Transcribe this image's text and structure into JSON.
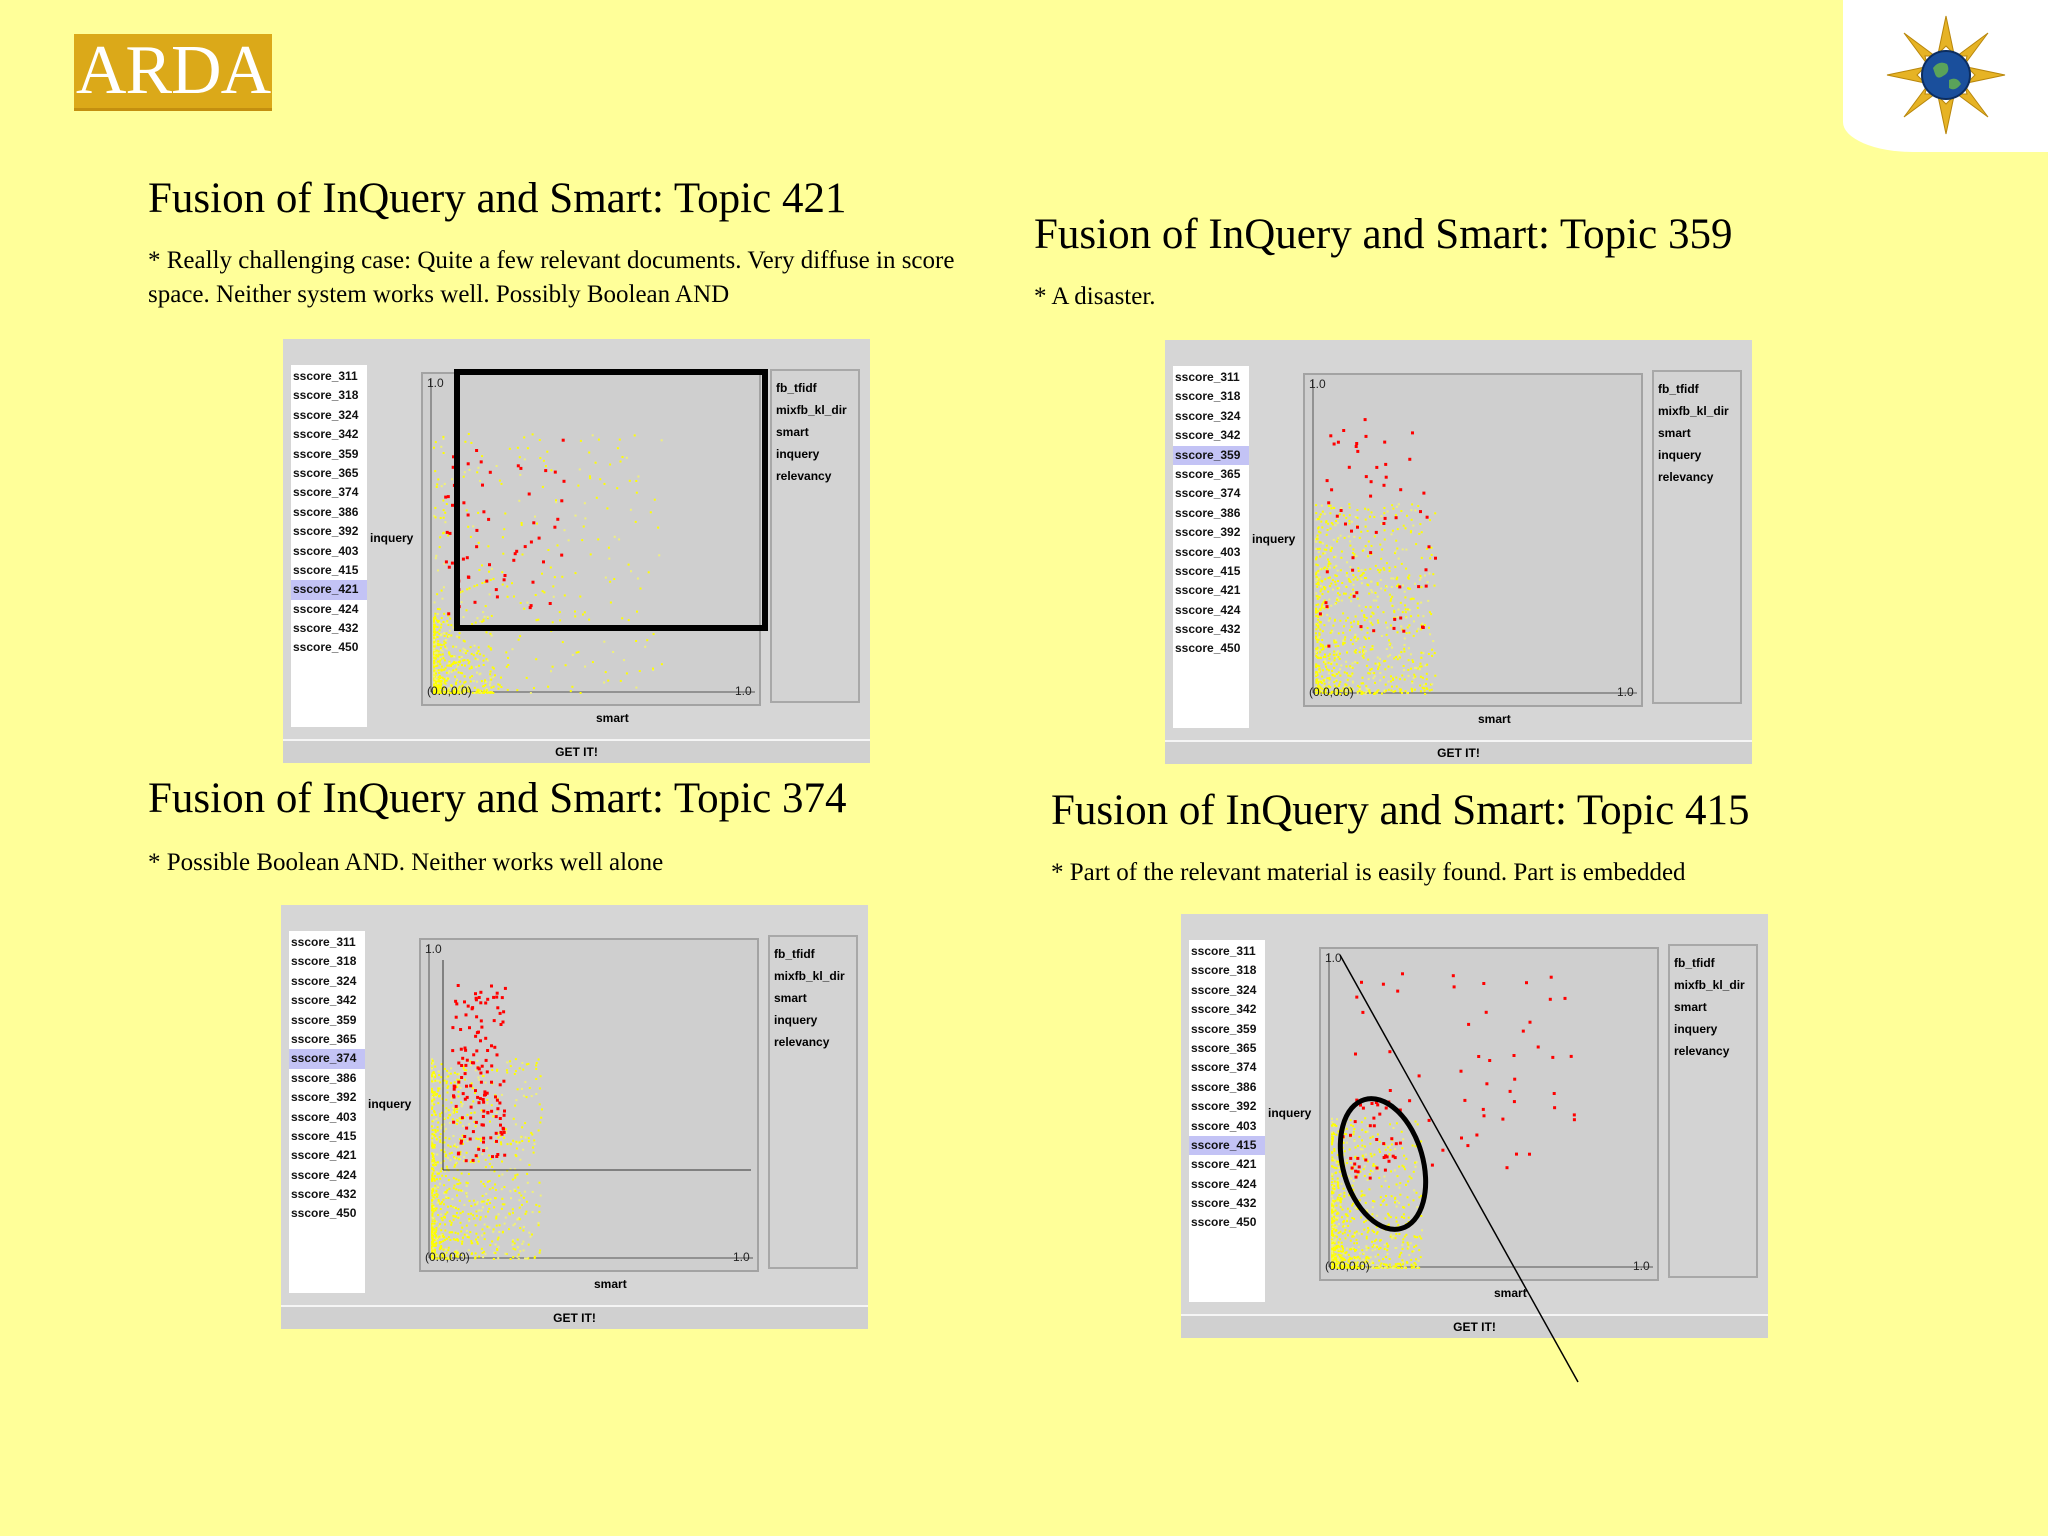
{
  "header": {
    "logo_text": "ARDA",
    "emblem_icon": "globe-star-emblem-icon"
  },
  "colors": {
    "background": "#ffff99",
    "relevant_point": "#ff0000",
    "doc_point": "#ffff00",
    "logo": "#dba919",
    "selected_item": "#c3c3f5"
  },
  "sections": [
    {
      "title": "Fusion of InQuery and Smart: Topic 421",
      "text": "* Really challenging case: Quite a few relevant documents. Very diffuse in score space. Neither system works well. Possibly Boolean AND",
      "selected_topic": "sscore_421",
      "annotation": "rectangle"
    },
    {
      "title": "Fusion of InQuery and Smart: Topic 359",
      "text": "* A disaster.",
      "selected_topic": "sscore_359",
      "annotation": "none"
    },
    {
      "title": "Fusion of InQuery and Smart: Topic 374",
      "text": "* Possible Boolean AND.  Neither works well alone",
      "selected_topic": "sscore_374",
      "annotation": "boolean-lines"
    },
    {
      "title": "Fusion of InQuery and Smart: Topic 415",
      "text": "* Part of the relevant material is easily found. Part is embedded",
      "selected_topic": "sscore_415",
      "annotation": "ellipse-and-line"
    }
  ],
  "panel": {
    "topics": [
      "sscore_311",
      "sscore_318",
      "sscore_324",
      "sscore_342",
      "sscore_359",
      "sscore_365",
      "sscore_374",
      "sscore_386",
      "sscore_392",
      "sscore_403",
      "sscore_415",
      "sscore_421",
      "sscore_424",
      "sscore_432",
      "sscore_450"
    ],
    "series": [
      "fb_tfidf",
      "mixfb_kl_dir",
      "smart",
      "inquery",
      "relevancy"
    ],
    "x_axis_label": "smart",
    "y_axis_label": "inquery",
    "origin_label": "(0.0,0.0)",
    "x_max_label": "1.0",
    "y_max_label": "1.0",
    "button_label": "GET IT!"
  }
}
